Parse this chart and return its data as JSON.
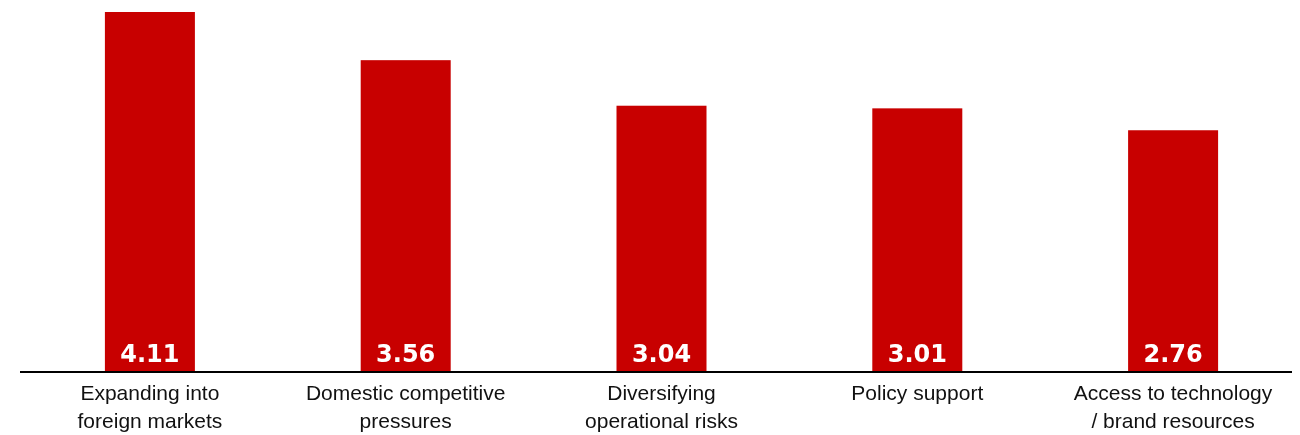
{
  "chart_data": {
    "type": "bar",
    "categories": [
      "Expanding into foreign markets",
      "Domestic competitive pressures",
      "Diversifying operational risks",
      "Policy support",
      "Access to technology / brand resources"
    ],
    "values": [
      4.11,
      3.56,
      3.04,
      3.01,
      2.76
    ],
    "color": "#c80000",
    "data_labels": true
  }
}
